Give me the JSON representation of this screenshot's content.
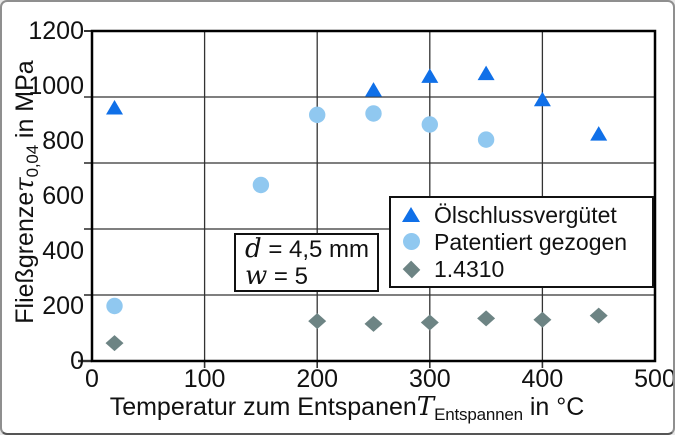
{
  "chart_data": {
    "type": "scatter",
    "xlabel_parts": {
      "pre": "Temperatur zum Entspanen ",
      "var": "T",
      "sub": "Entspannen",
      "post": " in °C"
    },
    "ylabel_parts": {
      "pre": "Fließgrenze ",
      "var": "τ",
      "sub": "0,04",
      "post": " in MPa"
    },
    "xlim": [
      0,
      500
    ],
    "ylim": [
      0,
      1200
    ],
    "xticks": [
      0,
      100,
      200,
      300,
      400,
      500
    ],
    "yticks": [
      0,
      200,
      400,
      600,
      800,
      1000,
      1200
    ],
    "grid": {
      "on": true,
      "x_divisions": 5,
      "y_divisions": 5
    },
    "legend_position": "inside lower right",
    "series": [
      {
        "name": "Ölschlussvergütet",
        "marker": "triangle",
        "color": "#1070e8",
        "points": [
          [
            20,
            920
          ],
          [
            250,
            985
          ],
          [
            300,
            1035
          ],
          [
            350,
            1045
          ],
          [
            400,
            950
          ],
          [
            450,
            825
          ]
        ]
      },
      {
        "name": "Patentiert gezogen",
        "marker": "circle",
        "color": "#90c8f0",
        "points": [
          [
            20,
            200
          ],
          [
            150,
            640
          ],
          [
            200,
            895
          ],
          [
            250,
            900
          ],
          [
            300,
            860
          ],
          [
            350,
            805
          ]
        ]
      },
      {
        "name": "1.4310",
        "marker": "diamond",
        "color": "#6d8484",
        "points": [
          [
            20,
            65
          ],
          [
            200,
            145
          ],
          [
            250,
            135
          ],
          [
            300,
            140
          ],
          [
            350,
            155
          ],
          [
            400,
            150
          ],
          [
            450,
            165
          ]
        ]
      }
    ],
    "annotation": {
      "line1_var": "d",
      "line1_rest": " = 4,5 mm",
      "line2_var": "w",
      "line2_rest": " = 5"
    }
  },
  "colors": {
    "background": "#ffffff",
    "grid_line": "#333333",
    "axis_border": "#000000",
    "text": "#111111"
  }
}
